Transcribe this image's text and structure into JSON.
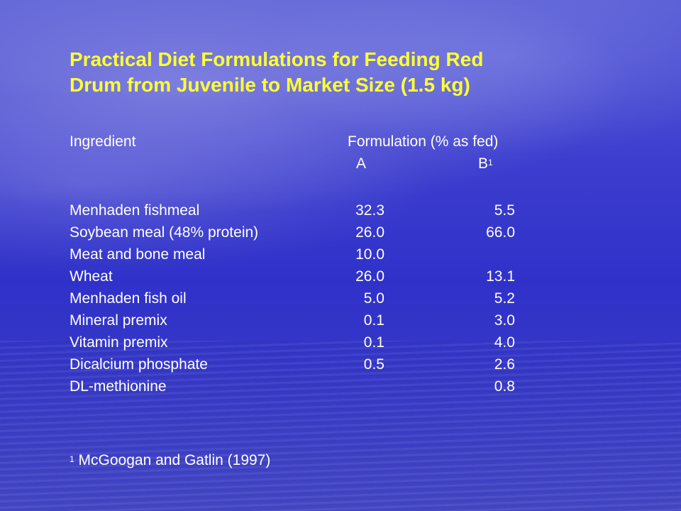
{
  "title": {
    "line1": "Practical Diet Formulations for Feeding Red",
    "line2": "Drum from Juvenile to Market Size (1.5 kg)"
  },
  "table": {
    "header": {
      "ingredient": "Ingredient",
      "formulation": "Formulation (% as fed)",
      "col_a": "A",
      "col_b": "B",
      "col_b_sup": "1"
    },
    "rows": [
      {
        "ingredient": "Menhaden fishmeal",
        "a": "32.3",
        "b": "5.5"
      },
      {
        "ingredient": "Soybean meal (48% protein)",
        "a": "26.0",
        "b": "66.0"
      },
      {
        "ingredient": "Meat and bone meal",
        "a": "10.0",
        "b": ""
      },
      {
        "ingredient": "Wheat",
        "a": "26.0",
        "b": "13.1"
      },
      {
        "ingredient": "Menhaden fish oil",
        "a": "5.0",
        "b": "5.2"
      },
      {
        "ingredient": "Mineral premix",
        "a": "0.1",
        "b": "3.0"
      },
      {
        "ingredient": "Vitamin premix",
        "a": "0.1",
        "b": "4.0"
      },
      {
        "ingredient": "Dicalcium phosphate",
        "a": "0.5",
        "b": "2.6"
      },
      {
        "ingredient": "DL-methionine",
        "a": "",
        "b": "0.8"
      }
    ]
  },
  "footnote": {
    "marker": "1",
    "text": "McGoogan and Gatlin (1997)"
  }
}
